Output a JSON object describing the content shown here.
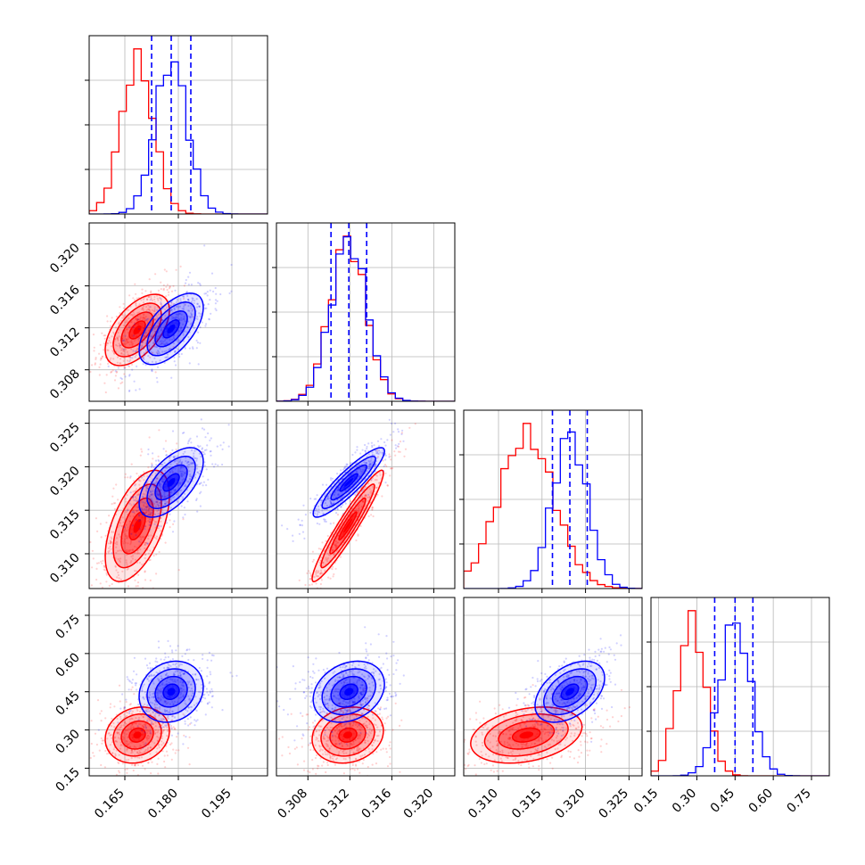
{
  "chart_data": {
    "type": "corner",
    "grid": true,
    "params": [
      {
        "index": 0,
        "range": [
          0.155,
          0.205
        ],
        "ticks": [
          "0.165",
          "0.180",
          "0.195"
        ]
      },
      {
        "index": 1,
        "range": [
          0.305,
          0.322
        ],
        "ticks": [
          "0.308",
          "0.312",
          "0.316",
          "0.320"
        ]
      },
      {
        "index": 2,
        "range": [
          0.306,
          0.3265
        ],
        "ticks": [
          "0.310",
          "0.315",
          "0.320",
          "0.325"
        ]
      },
      {
        "index": 3,
        "range": [
          0.12,
          0.82
        ],
        "ticks": [
          "0.15",
          "0.30",
          "0.45",
          "0.60",
          "0.75"
        ]
      }
    ],
    "series": [
      {
        "color": "#ff0000",
        "mean": [
          0.1685,
          0.3118,
          0.3132,
          0.28
        ],
        "sigma": [
          0.0045,
          0.0017,
          0.0032,
          0.055
        ],
        "corr": [
          [
            1,
            0.55,
            0.55,
            0.15
          ],
          [
            0.55,
            1,
            0.95,
            0.15
          ],
          [
            0.55,
            0.95,
            1,
            0.3
          ],
          [
            0.15,
            0.15,
            0.3,
            1
          ]
        ]
      },
      {
        "color": "#0000ff",
        "mean": [
          0.178,
          0.3119,
          0.3182,
          0.45
        ],
        "sigma": [
          0.0045,
          0.0017,
          0.002,
          0.06
        ],
        "corr": [
          [
            1,
            0.6,
            0.6,
            0.15
          ],
          [
            0.6,
            1,
            0.9,
            0.25
          ],
          [
            0.6,
            0.9,
            1,
            0.45
          ],
          [
            0.15,
            0.25,
            0.45,
            1
          ]
        ]
      }
    ],
    "quantiles": {
      "color": "#0000ff",
      "values": [
        [
          0.1725,
          0.178,
          0.1835
        ],
        [
          0.3102,
          0.3119,
          0.3136
        ],
        [
          0.3162,
          0.3182,
          0.3202
        ],
        [
          0.37,
          0.45,
          0.52
        ]
      ]
    }
  }
}
